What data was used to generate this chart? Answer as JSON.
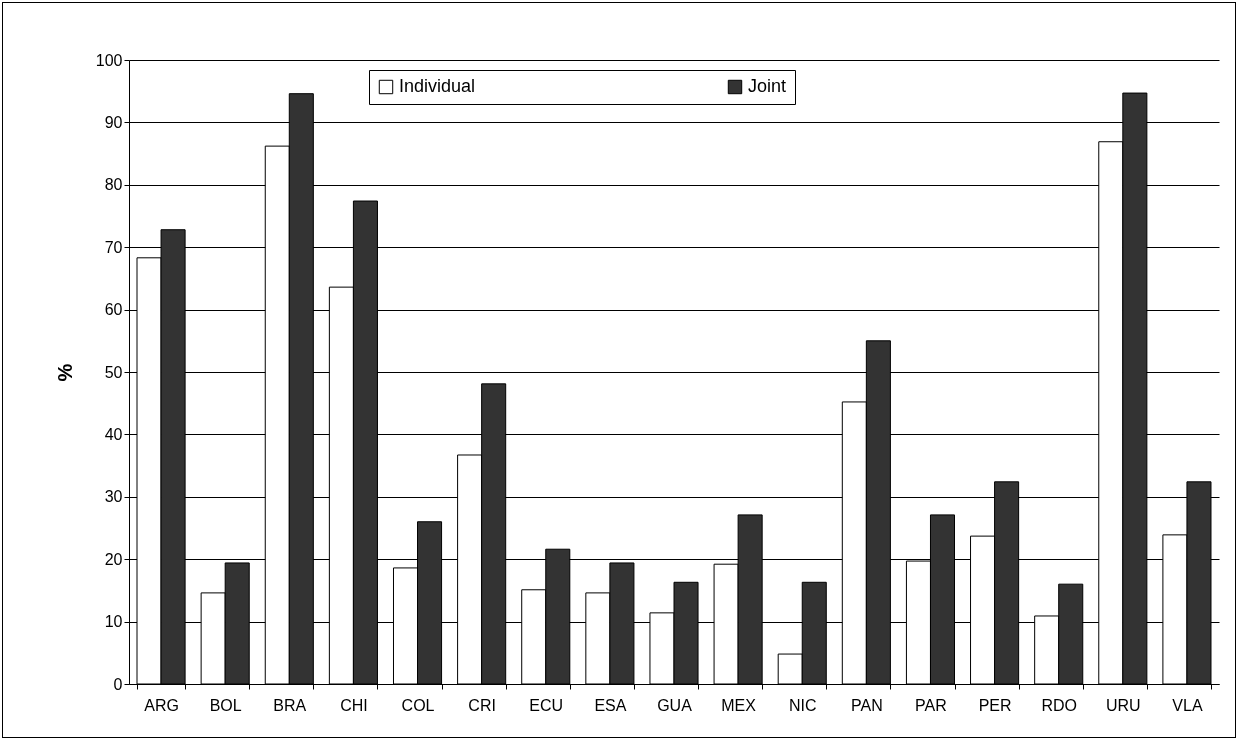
{
  "chart_data": {
    "type": "bar",
    "ylabel": "%",
    "categories": [
      "ARG",
      "BOL",
      "BRA",
      "CHI",
      "COL",
      "CRI",
      "ECU",
      "ESA",
      "GUA",
      "MEX",
      "NIC",
      "PAN",
      "PAR",
      "PER",
      "RDO",
      "URU",
      "VLA"
    ],
    "series": [
      {
        "name": "Individual",
        "color": "#ffffff",
        "values": [
          68.3,
          14.6,
          86.2,
          63.6,
          18.6,
          36.7,
          15.1,
          14.6,
          11.4,
          19.2,
          4.8,
          45.2,
          19.7,
          23.7,
          10.9,
          86.9,
          23.9
        ]
      },
      {
        "name": "Joint",
        "color": "#333333",
        "values": [
          72.8,
          19.4,
          94.6,
          77.4,
          26.0,
          48.1,
          21.6,
          19.4,
          16.3,
          27.1,
          16.3,
          55.0,
          27.1,
          32.4,
          16.0,
          94.7,
          32.4
        ]
      }
    ],
    "ylim": [
      0,
      100
    ],
    "yticks": [
      0,
      10,
      20,
      30,
      40,
      50,
      60,
      70,
      80,
      90,
      100
    ],
    "grid": "y",
    "legend": "top"
  }
}
